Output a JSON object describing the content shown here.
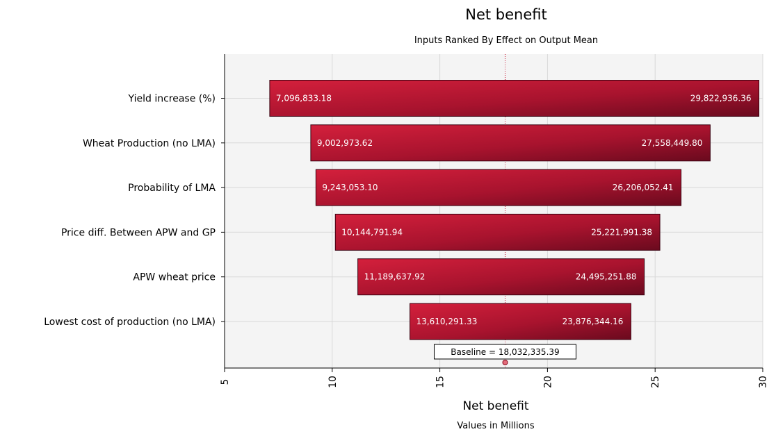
{
  "chart_data": {
    "type": "bar",
    "orientation": "horizontal",
    "subtype": "tornado",
    "title": "Net benefit",
    "subtitle": "Inputs Ranked By Effect on Output Mean",
    "xlabel": "Net benefit",
    "xlabel_sub": "Values in Millions",
    "xlim": [
      5,
      30
    ],
    "xticks": [
      "5",
      "10",
      "15",
      "20",
      "25",
      "30"
    ],
    "grid": true,
    "baseline": {
      "value": 18.03233539,
      "label": "Baseline = 18,032,335.39"
    },
    "categories": [
      "Yield increase (%)",
      "Wheat Production (no LMA)",
      "Probability of LMA",
      "Price diff. Between APW and GP",
      "APW wheat price",
      "Lowest cost of production (no LMA)"
    ],
    "series": [
      {
        "low": [
          7.09683318,
          9.00297362,
          9.2430531,
          10.14479194,
          11.18963792,
          13.61029133
        ],
        "high": [
          29.82293636,
          27.5584498,
          26.20605241,
          25.22199138,
          24.49525188,
          23.87634416
        ],
        "low_labels": [
          "7,096,833.18",
          "9,002,973.62",
          "9,243,053.10",
          "10,144,791.94",
          "11,189,637.92",
          "13,610,291.33"
        ],
        "high_labels": [
          "29,822,936.36",
          "27,558,449.80",
          "26,206,052.41",
          "25,221,991.38",
          "24,495,251.88",
          "23,876,344.16"
        ]
      }
    ],
    "colors": {
      "bar_light": "#d4203c",
      "bar_dark": "#6a0a1e",
      "bar_stroke": "#3a0010",
      "grid": "#d8d8d8",
      "plot_bg": "#f4f4f4",
      "baseline_line": "#c8102e",
      "baseline_marker": "#e36b7a"
    }
  }
}
